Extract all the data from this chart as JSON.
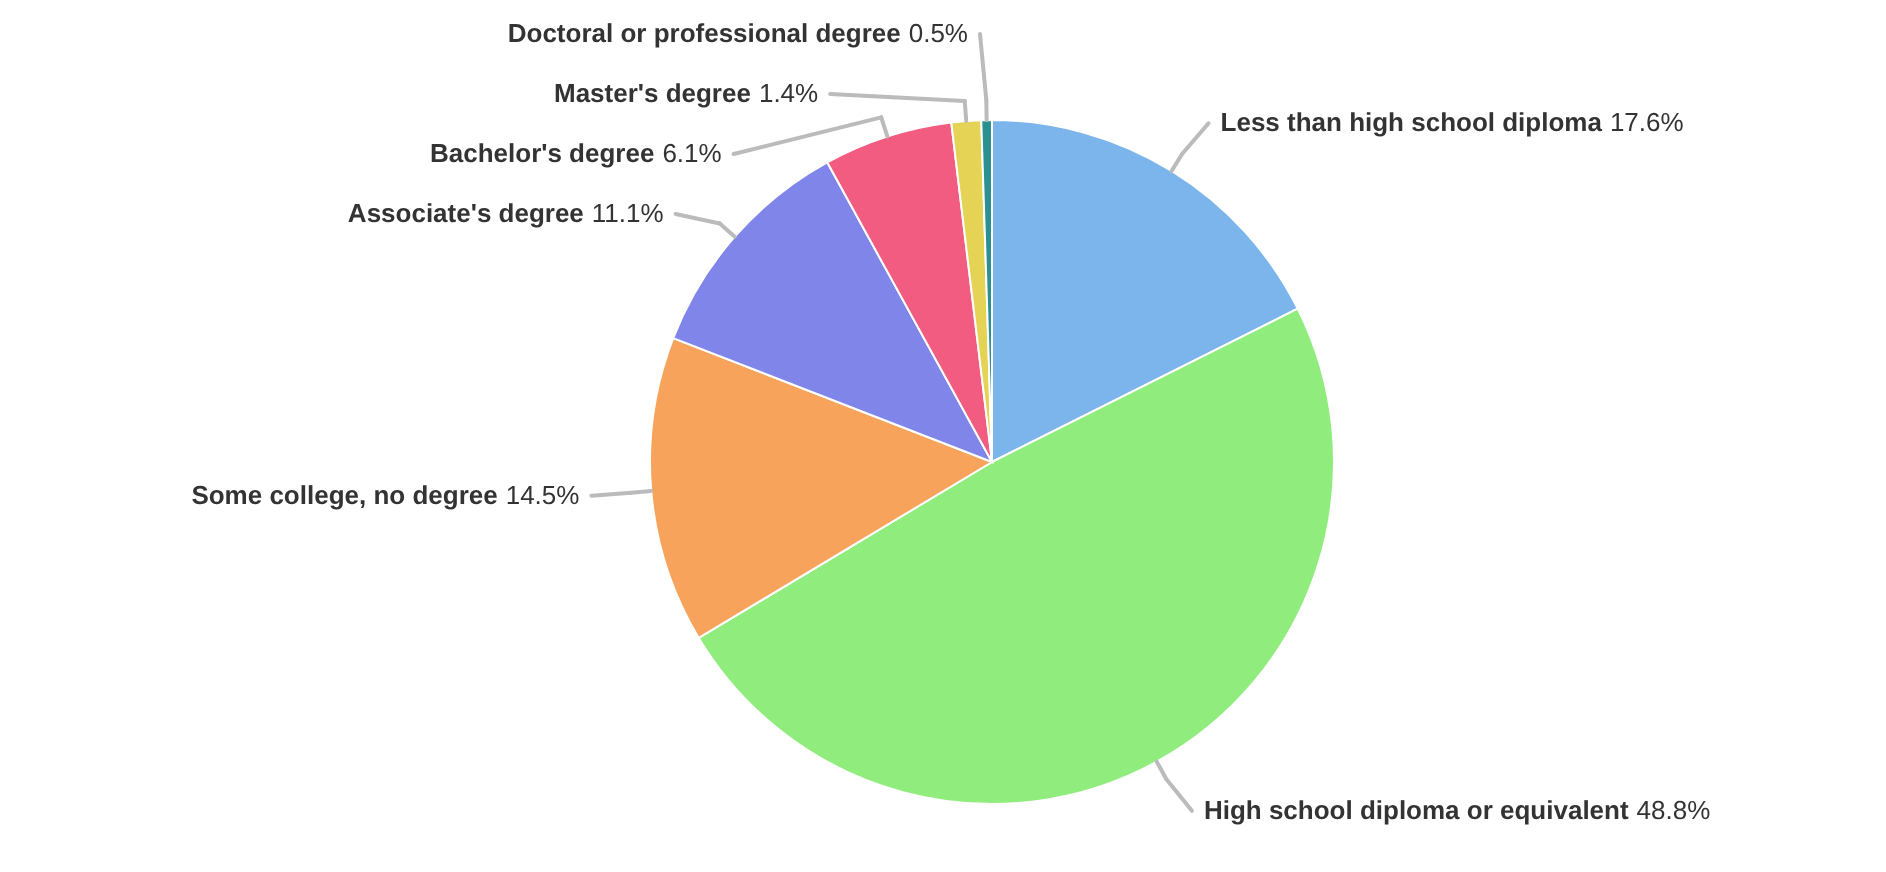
{
  "chart_data": {
    "type": "pie",
    "categories": [
      "Less than high school diploma",
      "High school diploma or equivalent",
      "Some college, no degree",
      "Associate's degree",
      "Bachelor's degree",
      "Master's degree",
      "Doctoral or professional degree"
    ],
    "values": [
      17.6,
      48.8,
      14.5,
      11.1,
      6.1,
      1.4,
      0.5
    ],
    "colors": [
      "#7cb5ec",
      "#90ed7d",
      "#f7a35c",
      "#8085e9",
      "#f15c80",
      "#e4d354",
      "#2b908f"
    ],
    "value_labels": [
      "17.6%",
      "48.8%",
      "14.5%",
      "11.1%",
      "6.1%",
      "1.4%",
      "0.5%"
    ]
  }
}
